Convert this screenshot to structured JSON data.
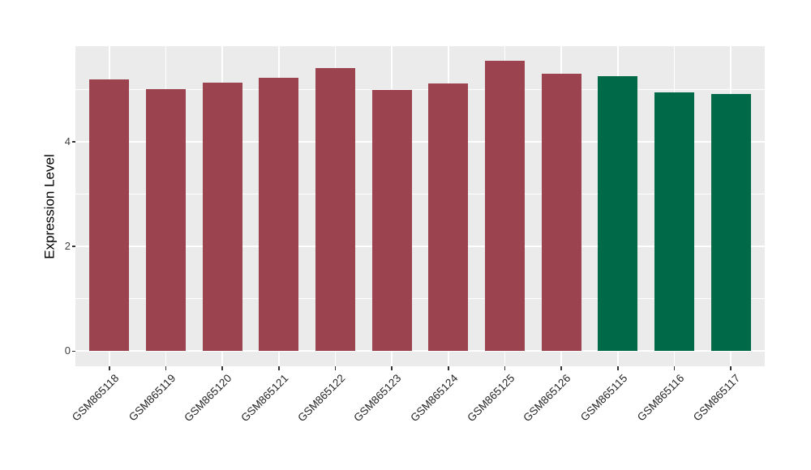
{
  "chart_data": {
    "type": "bar",
    "title": "",
    "xlabel": "",
    "ylabel": "Expression Level",
    "categories": [
      "GSM865118",
      "GSM865119",
      "GSM865120",
      "GSM865121",
      "GSM865122",
      "GSM865123",
      "GSM865124",
      "GSM865125",
      "GSM865126",
      "GSM865115",
      "GSM865116",
      "GSM865117"
    ],
    "values": [
      5.19,
      5.01,
      5.13,
      5.22,
      5.41,
      5.0,
      5.11,
      5.55,
      5.31,
      5.25,
      4.95,
      4.91
    ],
    "bar_colors": [
      "#9B4450",
      "#9B4450",
      "#9B4450",
      "#9B4450",
      "#9B4450",
      "#9B4450",
      "#9B4450",
      "#9B4450",
      "#9B4450",
      "#006A48",
      "#006A48",
      "#006A48"
    ],
    "groups": [
      {
        "name": "group-red",
        "color": "#9B4450",
        "members": [
          "GSM865118",
          "GSM865119",
          "GSM865120",
          "GSM865121",
          "GSM865122",
          "GSM865123",
          "GSM865124",
          "GSM865125",
          "GSM865126"
        ]
      },
      {
        "name": "group-green",
        "color": "#006A48",
        "members": [
          "GSM865115",
          "GSM865116",
          "GSM865117"
        ]
      }
    ],
    "yticks": [
      0,
      2,
      4
    ],
    "minor_yticks": [
      1,
      3,
      5
    ],
    "ylim": [
      -0.29,
      5.83
    ],
    "bar_width_fraction": 0.7,
    "category_padding": 0.6,
    "grid": true,
    "legend_position": "none",
    "x_label_rotation_deg": 45,
    "colors": {
      "panel_bg": "#EBEBEB",
      "gridline": "#FFFFFF",
      "axis_text": "#404040",
      "axis_title": "#000000",
      "tick_mark": "#333333"
    }
  }
}
